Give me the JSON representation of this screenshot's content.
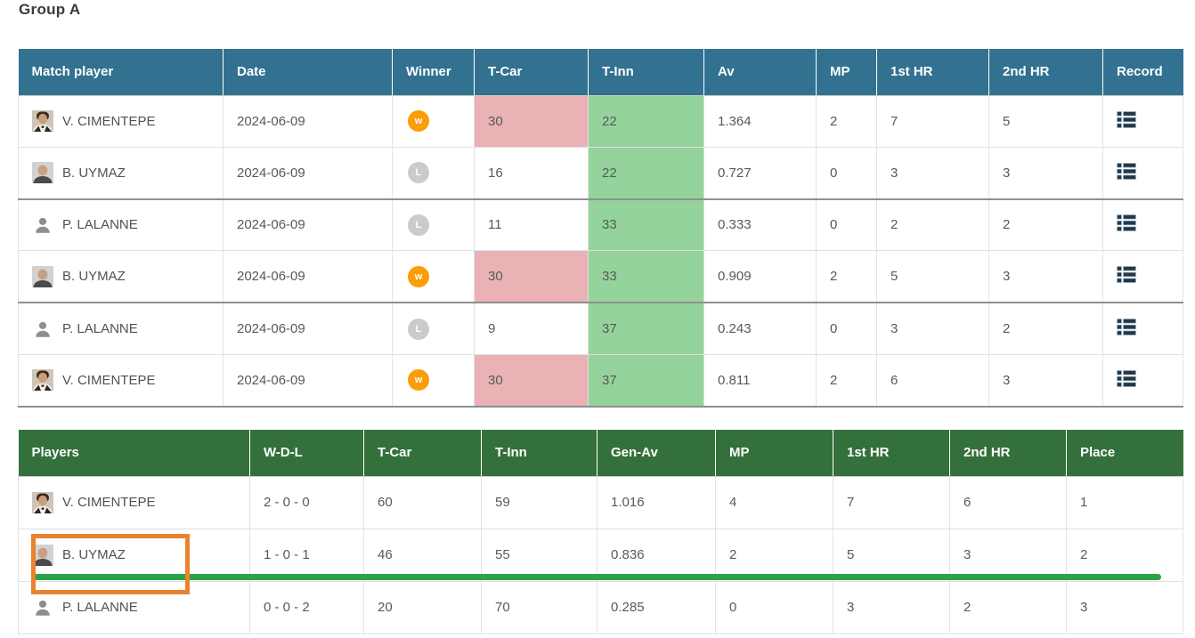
{
  "page_title": "Group A",
  "colors": {
    "match_header_bg": "#32718f",
    "standings_header_bg": "#34703c",
    "row_stripe": "#f1f1f1",
    "tcar_highlight_pink": "#eab2b5",
    "tinn_highlight_green": "#94d49c",
    "winner_badge_orange": "#fb9d08",
    "loser_badge_gray": "#cbcbcb",
    "record_icon_navy": "#22384a",
    "annotation_orange": "#e9832f",
    "annotation_green": "#2ba245"
  },
  "match_table": {
    "columns": [
      "Match player",
      "Date",
      "Winner",
      "T-Car",
      "T-Inn",
      "Av",
      "MP",
      "1st HR",
      "2nd HR",
      "Record"
    ],
    "rows": [
      {
        "player": "V. CIMENTEPE",
        "avatar": "photo-cimentepe",
        "date": "2024-06-09",
        "result": "W",
        "t_car": "30",
        "t_car_hl": true,
        "t_inn": "22",
        "t_inn_hl": true,
        "av": "1.364",
        "mp": "2",
        "hr1": "7",
        "hr2": "5"
      },
      {
        "player": "B. UYMAZ",
        "avatar": "photo-uymaz",
        "date": "2024-06-09",
        "result": "L",
        "t_car": "16",
        "t_car_hl": false,
        "t_inn": "22",
        "t_inn_hl": true,
        "av": "0.727",
        "mp": "0",
        "hr1": "3",
        "hr2": "3"
      },
      {
        "player": "P. LALANNE",
        "avatar": "person-silhouette",
        "date": "2024-06-09",
        "result": "L",
        "t_car": "11",
        "t_car_hl": false,
        "t_inn": "33",
        "t_inn_hl": true,
        "av": "0.333",
        "mp": "0",
        "hr1": "2",
        "hr2": "2"
      },
      {
        "player": "B. UYMAZ",
        "avatar": "photo-uymaz",
        "date": "2024-06-09",
        "result": "W",
        "t_car": "30",
        "t_car_hl": true,
        "t_inn": "33",
        "t_inn_hl": true,
        "av": "0.909",
        "mp": "2",
        "hr1": "5",
        "hr2": "3"
      },
      {
        "player": "P. LALANNE",
        "avatar": "person-silhouette",
        "date": "2024-06-09",
        "result": "L",
        "t_car": "9",
        "t_car_hl": false,
        "t_inn": "37",
        "t_inn_hl": true,
        "av": "0.243",
        "mp": "0",
        "hr1": "3",
        "hr2": "2"
      },
      {
        "player": "V. CIMENTEPE",
        "avatar": "photo-cimentepe",
        "date": "2024-06-09",
        "result": "W",
        "t_car": "30",
        "t_car_hl": true,
        "t_inn": "37",
        "t_inn_hl": true,
        "av": "0.811",
        "mp": "2",
        "hr1": "6",
        "hr2": "3"
      }
    ]
  },
  "standings_table": {
    "columns": [
      "Players",
      "W-D-L",
      "T-Car",
      "T-Inn",
      "Gen-Av",
      "MP",
      "1st HR",
      "2nd HR",
      "Place"
    ],
    "rows": [
      {
        "player": "V. CIMENTEPE",
        "avatar": "photo-cimentepe",
        "wdl": "2 - 0 - 0",
        "t_car": "60",
        "t_inn": "59",
        "gen_av": "1.016",
        "mp": "4",
        "hr1": "7",
        "hr2": "6",
        "place": "1",
        "highlighted": false
      },
      {
        "player": "B. UYMAZ",
        "avatar": "photo-uymaz",
        "wdl": "1 - 0 - 1",
        "t_car": "46",
        "t_inn": "55",
        "gen_av": "0.836",
        "mp": "2",
        "hr1": "5",
        "hr2": "3",
        "place": "2",
        "highlighted": true
      },
      {
        "player": "P. LALANNE",
        "avatar": "person-silhouette",
        "wdl": "0 - 0 - 2",
        "t_car": "20",
        "t_inn": "70",
        "gen_av": "0.285",
        "mp": "0",
        "hr1": "3",
        "hr2": "2",
        "place": "3",
        "highlighted": false
      }
    ]
  },
  "annotations": {
    "orange_box_target": "B. UYMAZ standings row player cell",
    "green_underline_target": "B. UYMAZ standings row"
  }
}
